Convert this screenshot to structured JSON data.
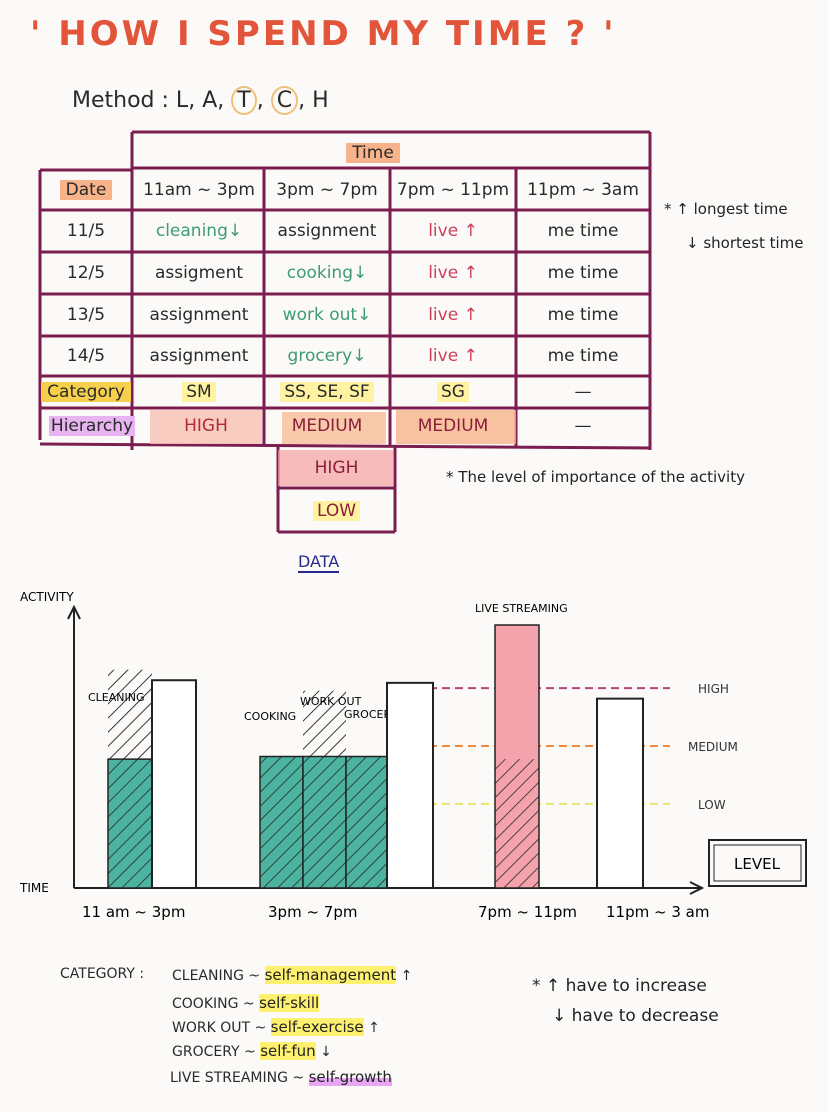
{
  "title": "' HOW I SPEND MY TIME ? '",
  "method": {
    "label": "Method :",
    "letters": [
      "L",
      "A",
      "T",
      "C",
      "H"
    ]
  },
  "table": {
    "time_header": "Time",
    "date_header": "Date",
    "columns": [
      "11am ~ 3pm",
      "3pm ~ 7pm",
      "7pm ~ 11pm",
      "11pm ~ 3am"
    ],
    "rows": [
      {
        "date": "11/5",
        "cells": [
          "cleaning",
          "assignment",
          "live",
          "me time"
        ]
      },
      {
        "date": "12/5",
        "cells": [
          "assigment",
          "cooking",
          "live",
          "me time"
        ]
      },
      {
        "date": "13/5",
        "cells": [
          "assignment",
          "work out",
          "live",
          "me time"
        ]
      },
      {
        "date": "14/5",
        "cells": [
          "assignment",
          "grocery",
          "live",
          "me time"
        ]
      }
    ],
    "category_label": "Category",
    "categories": [
      "SM",
      "SS, SE, SF",
      "SG",
      "—"
    ],
    "hierarchy_label": "Hierarchy",
    "hierarchy": [
      "HIGH",
      "MEDIUM",
      "MEDIUM",
      "—"
    ],
    "extra_levels": [
      "HIGH",
      "LOW"
    ],
    "legend": {
      "up": "longest time",
      "down": "shortest time"
    },
    "footnote": "The level of importance of the activity",
    "arrows": {
      "up": "↑",
      "down": "↓",
      "star": "*"
    },
    "colors": {
      "frame": "#7b1d4e",
      "green": "#3f9a78",
      "red": "#cc3f5a",
      "orange": "#f7b48a",
      "yellow": "#fff2a0",
      "pink": "#f4a3ad"
    }
  },
  "data_label": "DATA",
  "chart_data": {
    "type": "bar",
    "title": "",
    "xlabel": "TIME",
    "ylabel": "ACTIVITY",
    "categories": [
      "11 am ~ 3pm",
      "3pm ~ 7pm",
      "7pm ~ 11pm",
      "11pm ~ 3 am"
    ],
    "bars": [
      {
        "group": "11 am ~ 3pm",
        "label": "CLEANING",
        "fill": 0.49,
        "hatch_top": 0.83,
        "color": "#4bb3a0"
      },
      {
        "group": "11 am ~ 3pm",
        "label": "",
        "fill": 0,
        "outline_top": 0.79,
        "color": "#ffffff"
      },
      {
        "group": "3pm ~ 7pm",
        "label": "COOKING",
        "fill": 0.5,
        "hatch_top": 0.5,
        "color": "#4bb3a0"
      },
      {
        "group": "3pm ~ 7pm",
        "label": "WORK OUT",
        "fill": 0.5,
        "hatch_top": 0.75,
        "color": "#4bb3a0"
      },
      {
        "group": "3pm ~ 7pm",
        "label": "GROCERY",
        "fill": 0.5,
        "hatch_top": 0.5,
        "color": "#4bb3a0"
      },
      {
        "group": "3pm ~ 7pm",
        "label": "",
        "fill": 0,
        "outline_top": 0.78,
        "color": "#ffffff"
      },
      {
        "group": "7pm ~ 11pm",
        "label": "LIVE STREAMING",
        "fill": 1.0,
        "hatch_top": 0.49,
        "color": "#f4a3ad"
      },
      {
        "group": "11pm ~ 3 am",
        "label": "",
        "fill": 0,
        "outline_top": 0.72,
        "color": "#ffffff"
      }
    ],
    "levels": [
      {
        "name": "HIGH",
        "value": 0.76,
        "color": "#b1467a"
      },
      {
        "name": "MEDIUM",
        "value": 0.54,
        "color": "#f08a3a"
      },
      {
        "name": "LOW",
        "value": 0.32,
        "color": "#e7e66a"
      }
    ],
    "level_box": "LEVEL",
    "grid": false
  },
  "category_key": {
    "label": "CATEGORY :",
    "items": [
      {
        "activity": "CLEANING ~",
        "category": "self-management",
        "arrow": "↑"
      },
      {
        "activity": "COOKING ~",
        "category": "self-skill",
        "arrow": ""
      },
      {
        "activity": "WORK OUT ~",
        "category": "self-exercise",
        "arrow": "↑"
      },
      {
        "activity": "GROCERY ~",
        "category": "self-fun",
        "arrow": "↓"
      },
      {
        "activity": "LIVE STREAMING ~",
        "category": "self-growth",
        "arrow": ""
      }
    ],
    "note_up": "have to increase",
    "note_down": "have to decrease"
  }
}
